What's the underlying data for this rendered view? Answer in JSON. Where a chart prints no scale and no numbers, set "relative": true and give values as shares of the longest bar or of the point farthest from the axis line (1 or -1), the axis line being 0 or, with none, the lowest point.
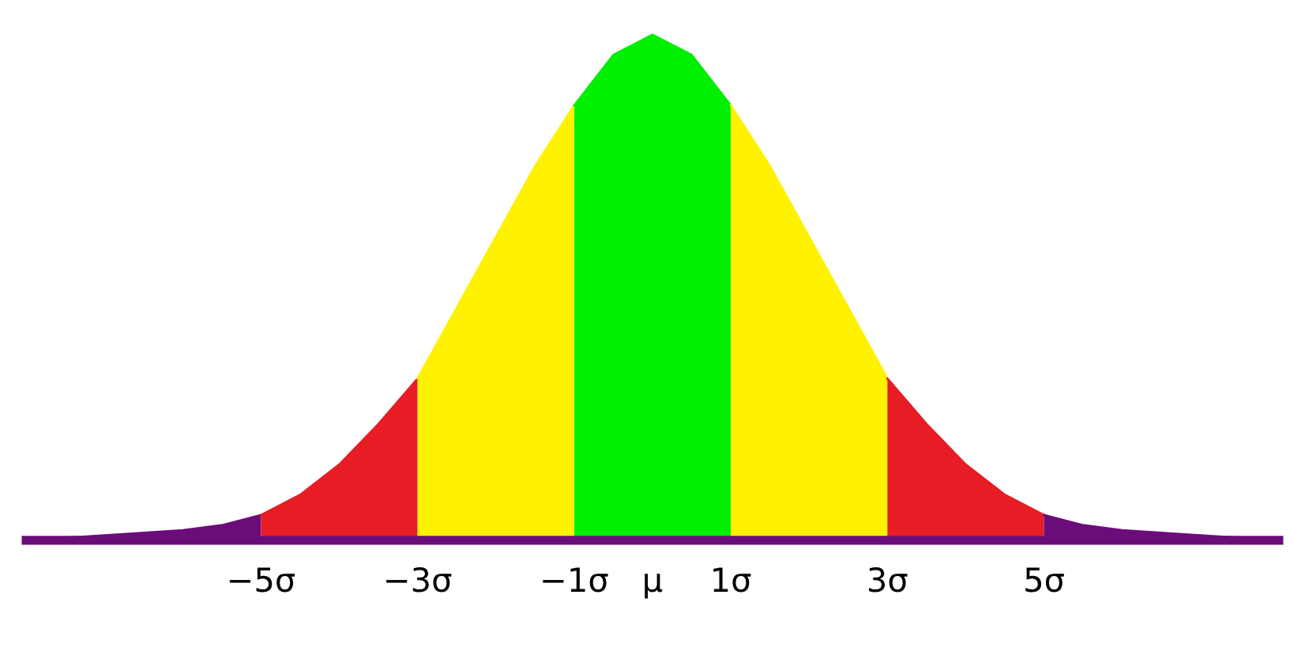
{
  "chart_data": {
    "type": "area",
    "relative": true,
    "xlim": [
      -8,
      8
    ],
    "xticks": [
      {
        "value": -5,
        "label": "−5σ"
      },
      {
        "value": -3,
        "label": "−3σ"
      },
      {
        "value": -1,
        "label": "−1σ"
      },
      {
        "value": 0,
        "label": "μ"
      },
      {
        "value": 1,
        "label": "1σ"
      },
      {
        "value": 3,
        "label": "3σ"
      },
      {
        "value": 5,
        "label": "5σ"
      }
    ],
    "grid": false,
    "legend": false,
    "series": [
      {
        "color": "#6a0d7a",
        "x": [
          -8,
          -7,
          -6,
          -5.5,
          -5
        ],
        "values": [
          0,
          0.01,
          0.02,
          0.03,
          0.05
        ]
      },
      {
        "color": "#e81c24",
        "x": [
          -5,
          -4.5,
          -4,
          -3.5,
          -3
        ],
        "values": [
          0.05,
          0.09,
          0.15,
          0.23,
          0.32
        ]
      },
      {
        "color": "#fff200",
        "x": [
          -3,
          -2.5,
          -2,
          -1.5,
          -1
        ],
        "values": [
          0.32,
          0.46,
          0.6,
          0.74,
          0.86
        ]
      },
      {
        "color": "#00ee00",
        "x": [
          -1,
          -0.5,
          0,
          0.5,
          1
        ],
        "values": [
          0.86,
          0.96,
          1,
          0.96,
          0.86
        ]
      },
      {
        "color": "#fff200",
        "x": [
          1,
          1.5,
          2,
          2.5,
          3
        ],
        "values": [
          0.86,
          0.74,
          0.6,
          0.46,
          0.32
        ]
      },
      {
        "color": "#e81c24",
        "x": [
          3,
          3.5,
          4,
          4.5,
          5
        ],
        "values": [
          0.32,
          0.23,
          0.15,
          0.09,
          0.05
        ]
      },
      {
        "color": "#6a0d7a",
        "x": [
          5,
          5.5,
          6,
          7,
          8
        ],
        "values": [
          0.05,
          0.03,
          0.02,
          0.01,
          0
        ]
      }
    ]
  }
}
